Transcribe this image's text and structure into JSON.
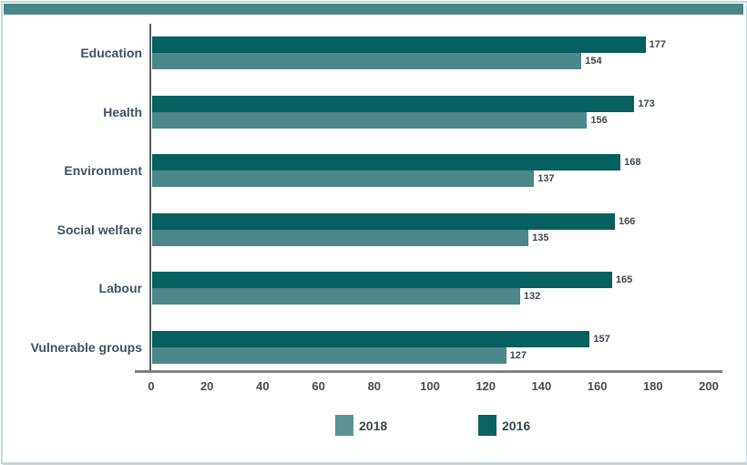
{
  "chart_data": {
    "type": "bar",
    "orientation": "horizontal",
    "title": "",
    "xlabel": "",
    "ylabel": "",
    "categories": [
      "Education",
      "Health",
      "Environment",
      "Social welfare",
      "Labour",
      "Vulnerable groups"
    ],
    "series": [
      {
        "name": "2016",
        "color": "#05605f",
        "values": [
          177,
          173,
          168,
          166,
          165,
          157
        ]
      },
      {
        "name": "2018",
        "color": "#4c8789",
        "values": [
          154,
          156,
          137,
          135,
          132,
          127
        ]
      }
    ],
    "xlim": [
      0,
      200
    ],
    "xticks": [
      0,
      20,
      40,
      60,
      80,
      100,
      120,
      140,
      160,
      180,
      200
    ],
    "legend": [
      {
        "label": "2018",
        "color": "#5d9294"
      },
      {
        "label": "2016",
        "color": "#0b6263"
      }
    ],
    "legend_position": "bottom",
    "grid": false,
    "value_labels_shown": true
  },
  "frame": {
    "top_band_color": "#4a8789",
    "border_color": "#bed9de",
    "x_axis_color": "#7d7f82",
    "y_axis_color": "#58595b",
    "category_label_color": "#3e5262",
    "value_label_color": "#40484f",
    "tick_label_color": "#48494b"
  }
}
